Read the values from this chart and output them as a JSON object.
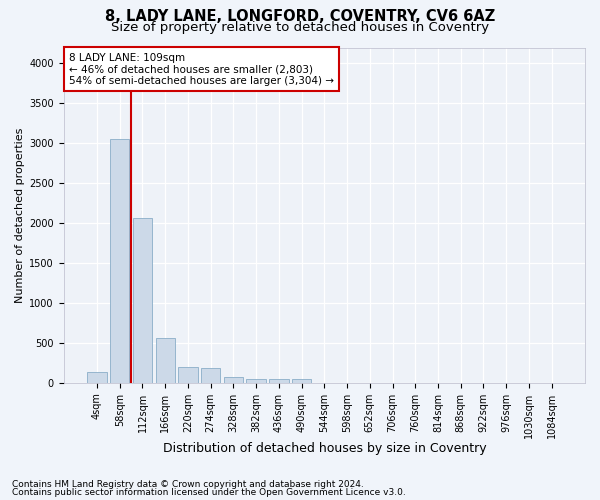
{
  "title_line1": "8, LADY LANE, LONGFORD, COVENTRY, CV6 6AZ",
  "title_line2": "Size of property relative to detached houses in Coventry",
  "xlabel": "Distribution of detached houses by size in Coventry",
  "ylabel": "Number of detached properties",
  "bar_labels": [
    "4sqm",
    "58sqm",
    "112sqm",
    "166sqm",
    "220sqm",
    "274sqm",
    "328sqm",
    "382sqm",
    "436sqm",
    "490sqm",
    "544sqm",
    "598sqm",
    "652sqm",
    "706sqm",
    "760sqm",
    "814sqm",
    "868sqm",
    "922sqm",
    "976sqm",
    "1030sqm",
    "1084sqm"
  ],
  "bar_values": [
    130,
    3060,
    2060,
    560,
    200,
    185,
    70,
    50,
    50,
    50,
    0,
    0,
    0,
    0,
    0,
    0,
    0,
    0,
    0,
    0,
    0
  ],
  "bar_color": "#ccd9e8",
  "bar_edge_color": "#8aaec8",
  "vline_color": "#cc0000",
  "vline_xindex": 1.5,
  "annotation_text": "8 LADY LANE: 109sqm\n← 46% of detached houses are smaller (2,803)\n54% of semi-detached houses are larger (3,304) →",
  "annotation_box_facecolor": "#ffffff",
  "annotation_box_edgecolor": "#cc0000",
  "ylim": [
    0,
    4200
  ],
  "yticks": [
    0,
    500,
    1000,
    1500,
    2000,
    2500,
    3000,
    3500,
    4000
  ],
  "footnote1": "Contains HM Land Registry data © Crown copyright and database right 2024.",
  "footnote2": "Contains public sector information licensed under the Open Government Licence v3.0.",
  "fig_facecolor": "#f0f4fa",
  "axes_facecolor": "#eef2f8",
  "grid_color": "#ffffff",
  "title1_fontsize": 10.5,
  "title2_fontsize": 9.5,
  "xlabel_fontsize": 9,
  "ylabel_fontsize": 8,
  "tick_fontsize": 7,
  "annot_fontsize": 7.5,
  "footnote_fontsize": 6.5
}
